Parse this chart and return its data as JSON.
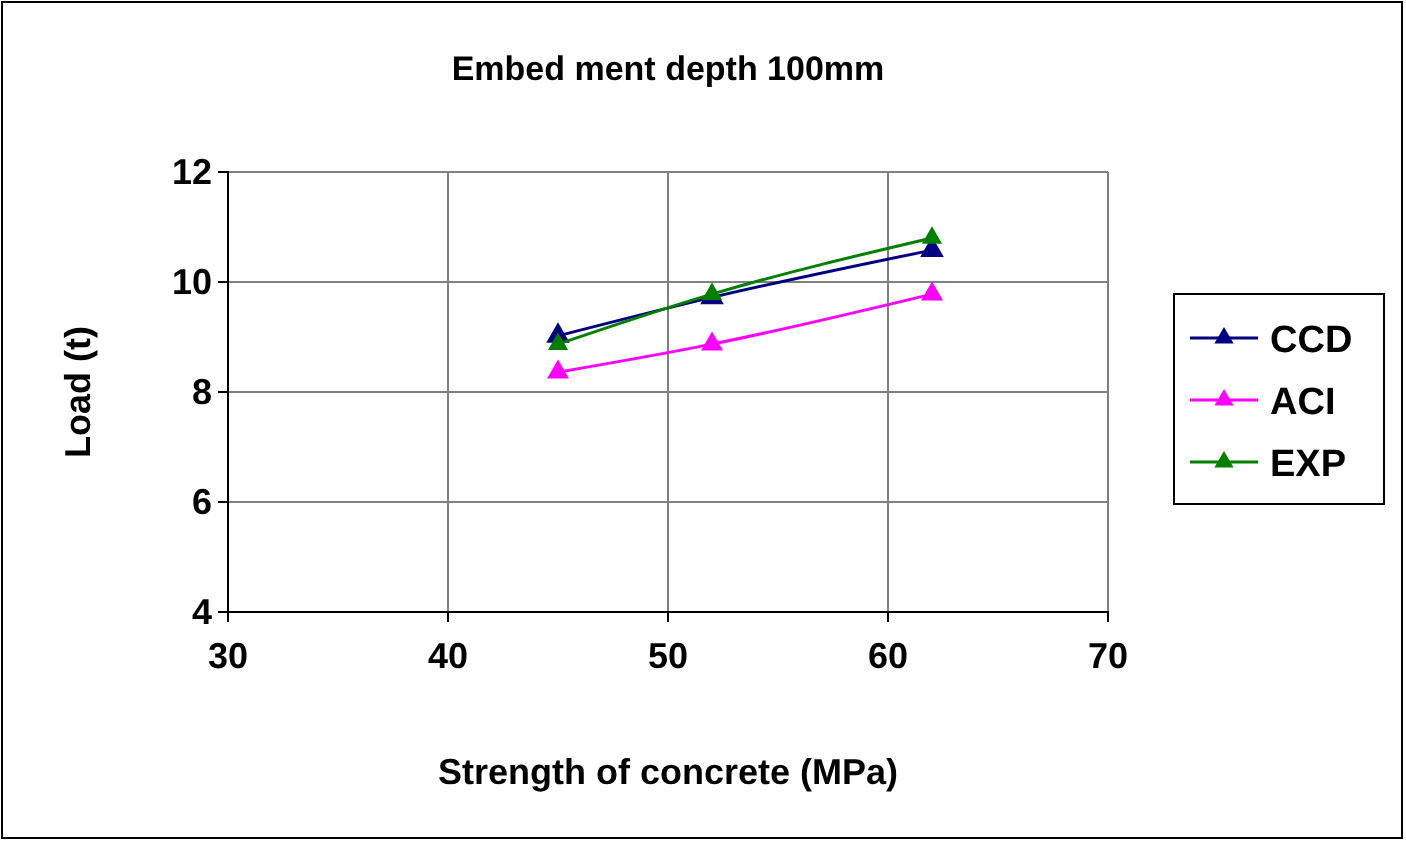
{
  "chart_data": {
    "type": "line",
    "title": "Embed ment depth 100mm",
    "xlabel": "Strength of concrete (MPa)",
    "ylabel": "Load (t)",
    "x": [
      45,
      52,
      62
    ],
    "series": [
      {
        "name": "CCD",
        "color": "#000080",
        "values": [
          9.02,
          9.72,
          10.58
        ]
      },
      {
        "name": "ACI",
        "color": "#ff00ff",
        "values": [
          8.36,
          8.87,
          9.78
        ]
      },
      {
        "name": "EXP",
        "color": "#008000",
        "values": [
          8.87,
          9.78,
          10.8
        ]
      }
    ],
    "xlim": [
      30,
      70
    ],
    "xticks": [
      30,
      40,
      50,
      60,
      70
    ],
    "ylim": [
      4,
      12
    ],
    "yticks": [
      4,
      6,
      8,
      10,
      12
    ],
    "grid": true,
    "legend": "right",
    "marker": "triangle",
    "line_style": "solid"
  }
}
